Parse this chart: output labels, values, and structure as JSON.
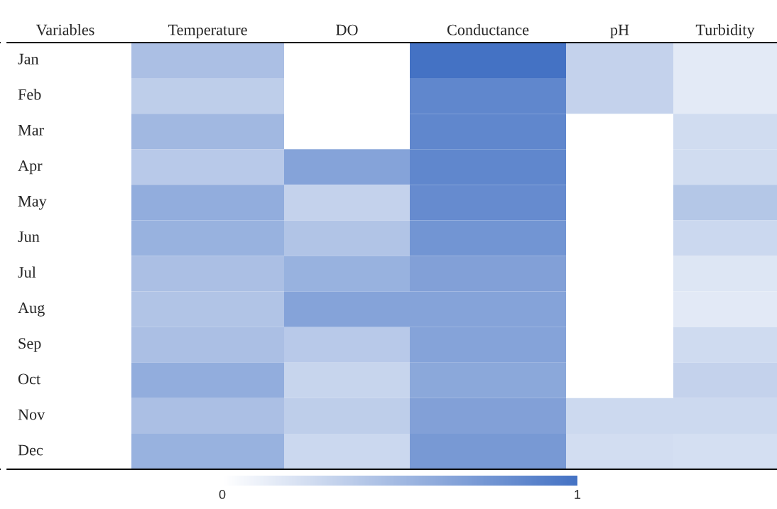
{
  "chart_data": {
    "type": "heatmap",
    "ylabel": "Variables",
    "categories": [
      "Temperature",
      "DO",
      "Conductance",
      "pH",
      "Turbidity"
    ],
    "y_categories": [
      "Jan",
      "Feb",
      "Mar",
      "Apr",
      "May",
      "Jun",
      "Jul",
      "Aug",
      "Sep",
      "Oct",
      "Nov",
      "Dec"
    ],
    "cells": [
      [
        0.45,
        null,
        1.0,
        0.32,
        0.15
      ],
      [
        0.35,
        null,
        0.85,
        0.32,
        0.15
      ],
      [
        0.5,
        null,
        0.85,
        null,
        0.25
      ],
      [
        0.38,
        0.65,
        0.85,
        null,
        0.25
      ],
      [
        0.58,
        0.32,
        0.82,
        null,
        0.4
      ],
      [
        0.55,
        0.42,
        0.75,
        null,
        0.28
      ],
      [
        0.45,
        0.55,
        0.67,
        null,
        0.18
      ],
      [
        0.42,
        0.65,
        0.65,
        null,
        0.16
      ],
      [
        0.45,
        0.38,
        0.65,
        null,
        0.26
      ],
      [
        0.58,
        0.3,
        0.62,
        null,
        0.32
      ],
      [
        0.45,
        0.35,
        0.67,
        0.27,
        0.27
      ],
      [
        0.55,
        0.28,
        0.72,
        0.24,
        0.23
      ]
    ],
    "colors": [
      "#ffffff",
      "#4472c4"
    ],
    "clim": [
      0,
      1
    ],
    "cticks": [
      0,
      1
    ]
  }
}
